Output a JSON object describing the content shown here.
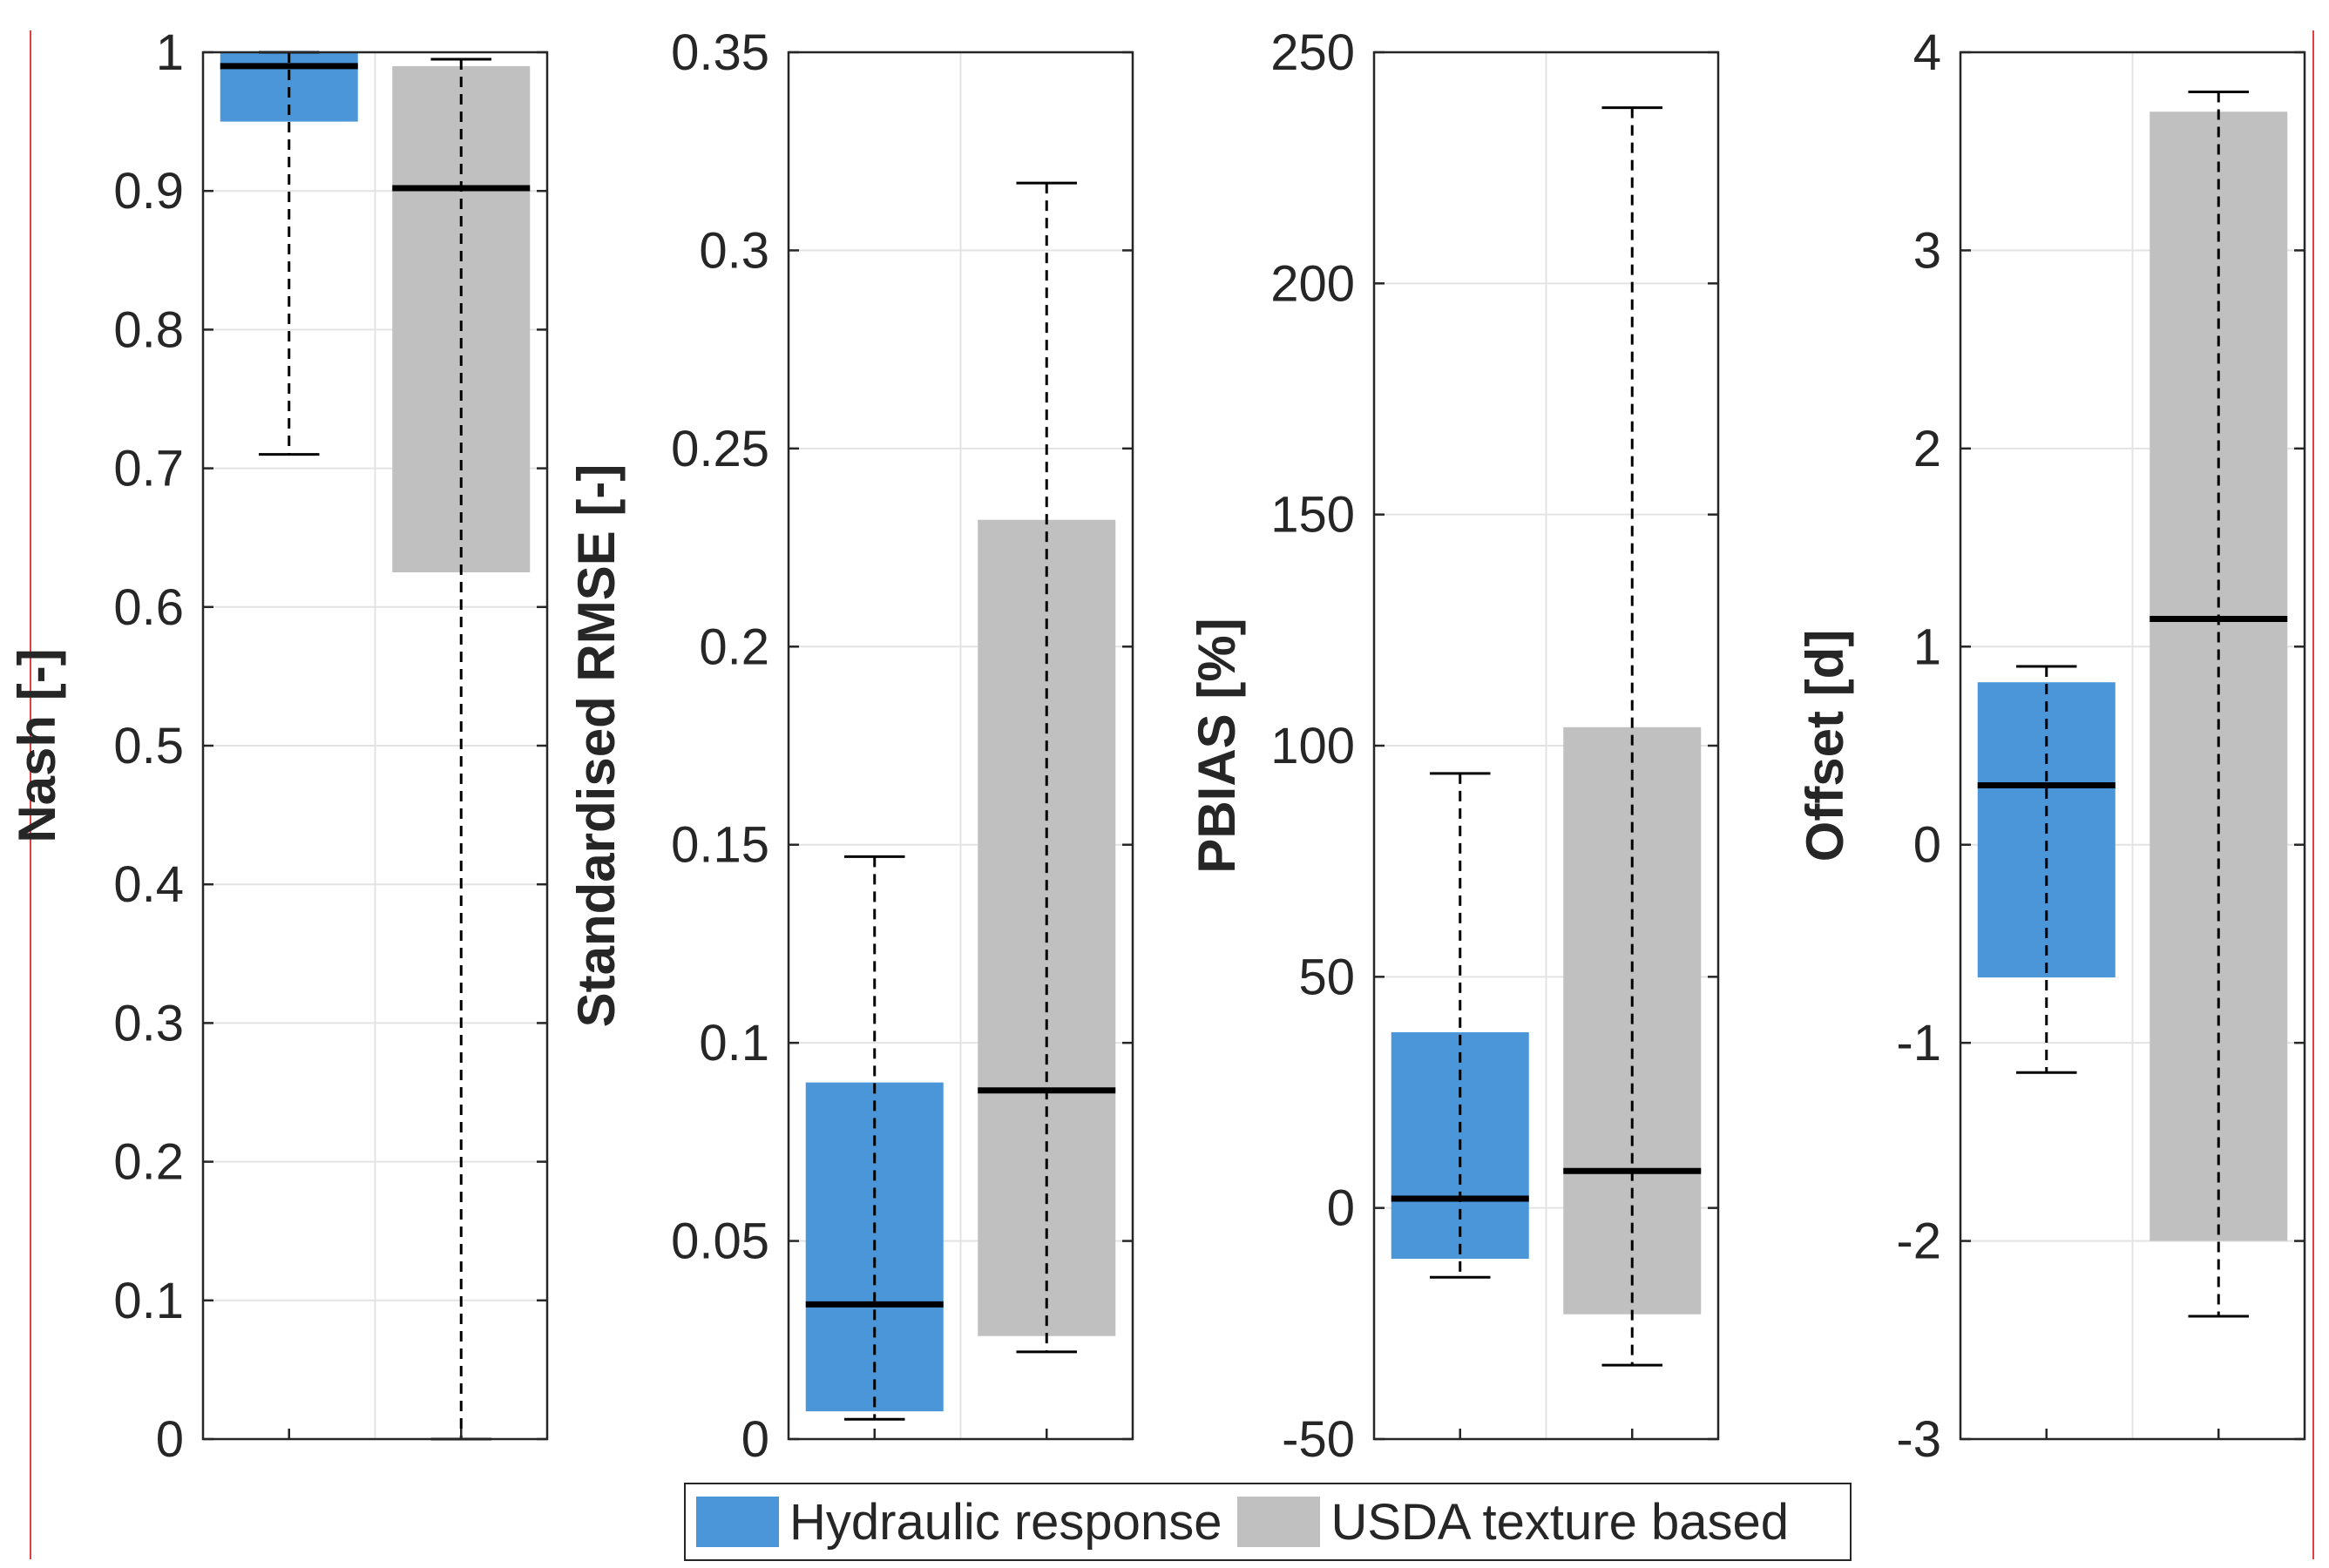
{
  "colors": {
    "hydraulic": "#4a96d8",
    "usda": "#c0c0c0"
  },
  "legend": {
    "items": [
      {
        "label": "Hydraulic response",
        "color": "#4a96d8"
      },
      {
        "label": "USDA texture based",
        "color": "#c0c0c0"
      }
    ]
  },
  "chart_data": [
    {
      "type": "box",
      "ylabel": "Nash [-]",
      "ylim": [
        0,
        1
      ],
      "yticks": [
        0,
        0.1,
        0.2,
        0.3,
        0.4,
        0.5,
        0.6,
        0.7,
        0.8,
        0.9,
        1
      ],
      "ytick_labels": [
        "0",
        "0.1",
        "0.2",
        "0.3",
        "0.4",
        "0.5",
        "0.6",
        "0.7",
        "0.8",
        "0.9",
        "1"
      ],
      "grid": true,
      "boxes": [
        {
          "series": "Hydraulic response",
          "whisker_low": 0.71,
          "q1": 0.95,
          "median": 0.99,
          "q3": 1.0,
          "whisker_high": 1.0
        },
        {
          "series": "USDA texture based",
          "whisker_low": 0.0,
          "q1": 0.625,
          "median": 0.902,
          "q3": 0.99,
          "whisker_high": 0.995
        }
      ]
    },
    {
      "type": "box",
      "ylabel": "Standardised RMSE [-]",
      "ylim": [
        0,
        0.35
      ],
      "yticks": [
        0,
        0.05,
        0.1,
        0.15,
        0.2,
        0.25,
        0.3,
        0.35
      ],
      "ytick_labels": [
        "0",
        "0.05",
        "0.1",
        "0.15",
        "0.2",
        "0.25",
        "0.3",
        "0.35"
      ],
      "grid": true,
      "boxes": [
        {
          "series": "Hydraulic response",
          "whisker_low": 0.005,
          "q1": 0.007,
          "median": 0.034,
          "q3": 0.09,
          "whisker_high": 0.147
        },
        {
          "series": "USDA texture based",
          "whisker_low": 0.022,
          "q1": 0.026,
          "median": 0.088,
          "q3": 0.232,
          "whisker_high": 0.317
        }
      ]
    },
    {
      "type": "box",
      "ylabel": "PBIAS [%]",
      "ylim": [
        -50,
        250
      ],
      "yticks": [
        -50,
        0,
        50,
        100,
        150,
        200,
        250
      ],
      "ytick_labels": [
        "-50",
        "0",
        "50",
        "100",
        "150",
        "200",
        "250"
      ],
      "grid": true,
      "boxes": [
        {
          "series": "Hydraulic response",
          "whisker_low": -15,
          "q1": -11,
          "median": 2,
          "q3": 38,
          "whisker_high": 94
        },
        {
          "series": "USDA texture based",
          "whisker_low": -34,
          "q1": -23,
          "median": 8,
          "q3": 104,
          "whisker_high": 238
        }
      ]
    },
    {
      "type": "box",
      "ylabel": "Offset [d]",
      "ylim": [
        -3,
        4
      ],
      "yticks": [
        -3,
        -2,
        -1,
        0,
        1,
        2,
        3,
        4
      ],
      "ytick_labels": [
        "-3",
        "-2",
        "-1",
        "0",
        "1",
        "2",
        "3",
        "4"
      ],
      "grid": true,
      "boxes": [
        {
          "series": "Hydraulic response",
          "whisker_low": -1.15,
          "q1": -0.67,
          "median": 0.3,
          "q3": 0.82,
          "whisker_high": 0.9
        },
        {
          "series": "USDA texture based",
          "whisker_low": -2.38,
          "q1": -2.0,
          "median": 1.14,
          "q3": 3.7,
          "whisker_high": 3.8
        }
      ]
    }
  ]
}
